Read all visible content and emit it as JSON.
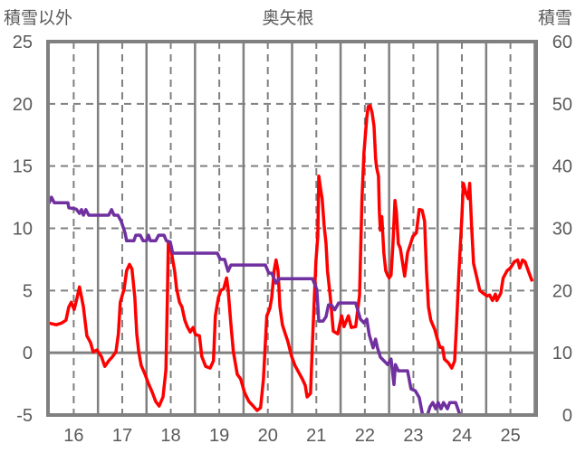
{
  "chart_data": {
    "type": "line",
    "title": "奥矢根",
    "ylabel": "積雪以外",
    "y2label": "積雪",
    "xlim": [
      15.47,
      25.53
    ],
    "ylim": [
      -5,
      25
    ],
    "y2lim": [
      0,
      60
    ],
    "x_ticks": [
      16,
      17,
      18,
      19,
      20,
      21,
      22,
      23,
      24,
      25
    ],
    "x_tick_labels": [
      "16",
      "17",
      "18",
      "19",
      "20",
      "21",
      "22",
      "23",
      "24",
      "25"
    ],
    "y_ticks": [
      -5,
      0,
      5,
      10,
      15,
      20,
      25
    ],
    "y_tick_labels": [
      "-5",
      "0",
      "5",
      "10",
      "15",
      "20",
      "25"
    ],
    "y2_ticks": [
      0,
      10,
      20,
      30,
      40,
      50,
      60
    ],
    "y2_tick_labels": [
      "0",
      "10",
      "20",
      "30",
      "40",
      "50",
      "60"
    ],
    "grid": true,
    "colors": {
      "other": "#ff0000",
      "snow": "#7030a0",
      "frame": "#808080",
      "text": "#595959"
    },
    "series": [
      {
        "name": "積雪以外",
        "axis": "left",
        "color": "#ff0000",
        "x": [
          15.49,
          15.64,
          15.75,
          15.84,
          15.9,
          15.95,
          16.01,
          16.07,
          16.12,
          16.2,
          16.27,
          16.35,
          16.4,
          16.48,
          16.57,
          16.64,
          16.72,
          16.79,
          16.87,
          16.92,
          16.96,
          17.04,
          17.09,
          17.15,
          17.2,
          17.26,
          17.3,
          17.34,
          17.39,
          17.47,
          17.54,
          17.62,
          17.69,
          17.76,
          17.84,
          17.9,
          17.93,
          17.95,
          17.99,
          18.03,
          18.08,
          18.12,
          18.18,
          18.23,
          18.29,
          18.34,
          18.4,
          18.46,
          18.51,
          18.59,
          18.64,
          18.72,
          18.81,
          18.88,
          18.92,
          18.98,
          19.03,
          19.09,
          19.15,
          19.18,
          19.24,
          19.29,
          19.37,
          19.44,
          19.52,
          19.61,
          19.7,
          19.78,
          19.85,
          19.91,
          19.95,
          19.98,
          20.04,
          20.08,
          20.13,
          20.17,
          20.21,
          20.25,
          20.3,
          20.36,
          20.41,
          20.49,
          20.56,
          20.64,
          20.71,
          20.77,
          20.81,
          20.88,
          20.92,
          20.96,
          20.99,
          21.03,
          21.05,
          21.09,
          21.12,
          21.16,
          21.2,
          21.23,
          21.29,
          21.35,
          21.44,
          21.52,
          21.57,
          21.66,
          21.72,
          21.81,
          21.89,
          21.94,
          21.98,
          22.04,
          22.07,
          22.11,
          22.15,
          22.19,
          22.22,
          22.24,
          22.28,
          22.3,
          22.32,
          22.35,
          22.39,
          22.43,
          22.47,
          22.5,
          22.54,
          22.58,
          22.62,
          22.65,
          22.69,
          22.73,
          22.82,
          22.88,
          22.93,
          22.99,
          23.06,
          23.12,
          23.18,
          23.23,
          23.27,
          23.31,
          23.36,
          23.44,
          23.49,
          23.55,
          23.6,
          23.64,
          23.72,
          23.79,
          23.85,
          23.89,
          23.94,
          24.0,
          24.03,
          24.09,
          24.13,
          24.16,
          24.2,
          24.24,
          24.31,
          24.37,
          24.44,
          24.52,
          24.57,
          24.63,
          24.69,
          24.72,
          24.8,
          24.85,
          24.93,
          25.0,
          25.08,
          25.15,
          25.19,
          25.25,
          25.3,
          25.38,
          25.45
        ],
        "y": [
          2.39,
          2.25,
          2.39,
          2.61,
          3.69,
          4.06,
          3.48,
          4.42,
          5.29,
          3.69,
          1.37,
          0.8,
          0.07,
          0.22,
          -0.29,
          -1.09,
          -0.65,
          -0.36,
          0.07,
          1.52,
          4.06,
          5.14,
          6.59,
          7.1,
          6.74,
          4.42,
          1.52,
          0.07,
          -1.02,
          -1.74,
          -2.47,
          -3.19,
          -3.91,
          -4.28,
          -3.55,
          -1.38,
          4.42,
          8.91,
          8.77,
          7.68,
          6.59,
          5.14,
          4.06,
          3.69,
          2.61,
          2.1,
          1.67,
          2.03,
          1.45,
          1.37,
          -0.29,
          -1.09,
          -1.23,
          -0.65,
          2.97,
          4.42,
          5.0,
          5.14,
          6.01,
          5.14,
          2.25,
          0.07,
          -1.74,
          -2.1,
          -3.19,
          -3.91,
          -4.28,
          -4.64,
          -4.42,
          -2.1,
          0.8,
          2.97,
          3.55,
          4.42,
          6.59,
          7.46,
          6.59,
          3.69,
          2.25,
          1.52,
          0.94,
          -0.29,
          -1.02,
          -1.6,
          -2.1,
          -2.61,
          -3.55,
          -3.26,
          0.8,
          4.42,
          7.32,
          9.35,
          14.2,
          13.11,
          12.39,
          10.22,
          8.77,
          6.59,
          4.42,
          1.74,
          1.52,
          2.97,
          2.1,
          2.97,
          2.03,
          2.1,
          4.64,
          12.39,
          16.01,
          18.91,
          19.78,
          19.85,
          19.27,
          18.19,
          15.65,
          14.93,
          14.2,
          11.3,
          9.85,
          10.94,
          8.04,
          6.59,
          6.23,
          6.01,
          6.23,
          8.77,
          12.24,
          11.3,
          8.77,
          8.4,
          6.16,
          8.04,
          8.62,
          9.35,
          9.64,
          11.52,
          11.45,
          10.58,
          6.59,
          3.69,
          2.61,
          1.88,
          1.16,
          0.43,
          0.43,
          -0.51,
          -0.8,
          -1.23,
          -0.65,
          2.25,
          6.59,
          10.94,
          13.62,
          12.75,
          12.39,
          13.62,
          10.22,
          7.17,
          6.01,
          5.0,
          4.78,
          4.56,
          4.64,
          4.2,
          4.71,
          4.2,
          4.78,
          6.01,
          6.59,
          6.81,
          7.32,
          7.46,
          6.81,
          7.46,
          7.32,
          6.45,
          5.73
        ]
      },
      {
        "name": "積雪",
        "axis": "right",
        "color": "#7030a0",
        "x": [
          15.49,
          15.54,
          15.6,
          15.88,
          15.9,
          16.05,
          16.12,
          16.16,
          16.2,
          16.25,
          16.31,
          16.72,
          16.78,
          16.83,
          16.91,
          16.98,
          17.06,
          17.09,
          17.24,
          17.28,
          17.37,
          17.43,
          17.5,
          17.54,
          17.58,
          17.69,
          17.75,
          17.86,
          17.91,
          17.99,
          18.04,
          18.96,
          19.02,
          19.11,
          19.18,
          19.24,
          19.95,
          20.02,
          20.08,
          20.12,
          20.17,
          20.23,
          20.92,
          21.01,
          21.05,
          21.14,
          21.2,
          21.25,
          21.31,
          21.38,
          21.46,
          21.81,
          21.91,
          21.98,
          22.04,
          22.09,
          22.17,
          22.22,
          22.26,
          22.32,
          22.47,
          22.54,
          22.6,
          22.63,
          22.69,
          22.88,
          22.95,
          23.04,
          23.12,
          23.19,
          23.29,
          23.34,
          23.4,
          23.46,
          23.51,
          23.57,
          23.62,
          23.7,
          23.75,
          23.87,
          23.96,
          25.53
        ],
        "y": [
          34.0,
          35.0,
          34.1,
          34.1,
          33.3,
          33.1,
          32.4,
          33.0,
          32.1,
          33.0,
          32.1,
          32.1,
          33.0,
          32.1,
          32.1,
          31.1,
          29.2,
          28.0,
          28.0,
          28.9,
          28.9,
          28.0,
          28.0,
          28.9,
          28.0,
          28.0,
          28.9,
          28.9,
          28.0,
          27.8,
          26.0,
          26.0,
          25.0,
          25.0,
          23.1,
          24.1,
          24.1,
          22.8,
          22.8,
          22.1,
          21.2,
          21.9,
          21.9,
          20.2,
          15.1,
          15.1,
          15.8,
          17.7,
          17.7,
          16.9,
          18.0,
          18.0,
          15.4,
          14.8,
          15.4,
          12.9,
          10.8,
          12.2,
          10.8,
          9.3,
          8.1,
          9.0,
          4.9,
          8.1,
          7.1,
          7.1,
          4.2,
          3.9,
          2.8,
          0,
          0,
          1.3,
          2.0,
          1.0,
          2.0,
          1.0,
          2.0,
          1.0,
          2.0,
          2.0,
          0,
          0
        ]
      }
    ]
  }
}
